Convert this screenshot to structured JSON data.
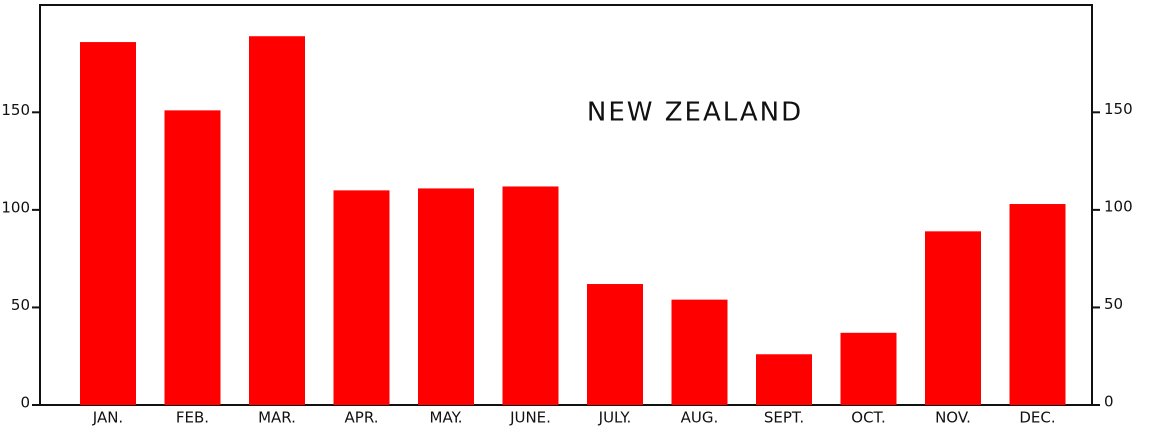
{
  "chart_data": {
    "type": "bar",
    "title": "NEW ZEALAND",
    "categories": [
      "JAN.",
      "FEB.",
      "MAR.",
      "APR.",
      "MAY.",
      "JUNE.",
      "JULY.",
      "AUG.",
      "SEPT.",
      "OCT.",
      "NOV.",
      "DEC."
    ],
    "values": [
      186,
      151,
      189,
      110,
      111,
      112,
      62,
      54,
      26,
      37,
      89,
      103
    ],
    "color": "#ff0000",
    "ylim": [
      0,
      205
    ],
    "yticks": [
      0,
      50,
      100,
      150
    ],
    "grid": false
  }
}
